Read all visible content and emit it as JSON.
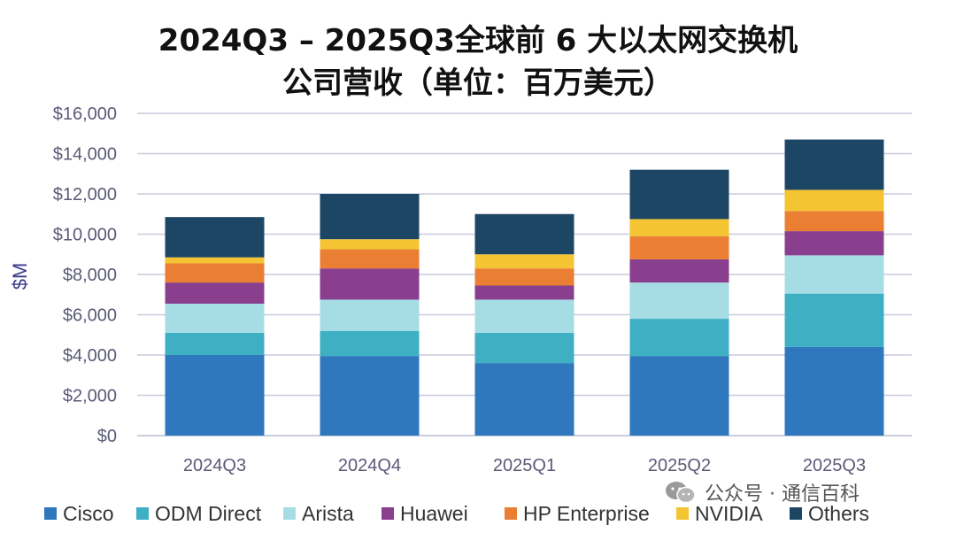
{
  "title": [
    "2024Q3 – 2025Q3全球前 6 大以太网交换机",
    "公司营收（单位：百万美元）"
  ],
  "watermark": "公众号 · 通信百科",
  "chart_data": {
    "type": "bar",
    "stacked": true,
    "categories": [
      "2024Q3",
      "2024Q4",
      "2025Q1",
      "2025Q2",
      "2025Q3"
    ],
    "ylabel": "$M",
    "ylim": [
      0,
      16000
    ],
    "yticks": [
      0,
      2000,
      4000,
      6000,
      8000,
      10000,
      12000,
      14000,
      16000
    ],
    "ytick_labels": [
      "$0",
      "$2,000",
      "$4,000",
      "$6,000",
      "$8,000",
      "$10,000",
      "$12,000",
      "$14,000",
      "$16,000"
    ],
    "grid": true,
    "legend_position": "bottom",
    "series": [
      {
        "name": "Cisco",
        "color": "#2f78bd",
        "values": [
          4000,
          3950,
          3600,
          3950,
          4400
        ]
      },
      {
        "name": "ODM Direct",
        "color": "#3fb0c4",
        "values": [
          1100,
          1250,
          1500,
          1850,
          2650
        ]
      },
      {
        "name": "Arista",
        "color": "#a6dde4",
        "values": [
          1450,
          1550,
          1650,
          1800,
          1900
        ]
      },
      {
        "name": "Huawei",
        "color": "#8a3f8e",
        "values": [
          1050,
          1550,
          700,
          1150,
          1200
        ]
      },
      {
        "name": "HP Enterprise",
        "color": "#ea7e33",
        "values": [
          950,
          950,
          850,
          1150,
          1000
        ]
      },
      {
        "name": "NVIDIA",
        "color": "#f4c433",
        "values": [
          300,
          500,
          700,
          850,
          1050
        ]
      },
      {
        "name": "Others",
        "color": "#1d4664",
        "values": [
          2000,
          2250,
          2000,
          2450,
          2500
        ]
      }
    ]
  }
}
